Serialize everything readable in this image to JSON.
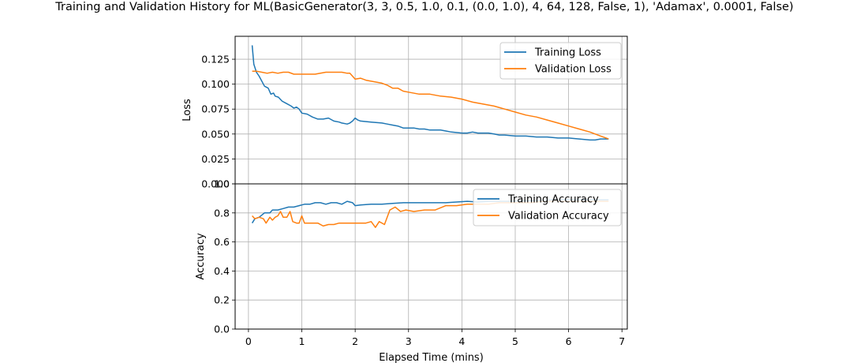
{
  "figure": {
    "title": "Training and Validation History for ML(BasicGenerator(3, 3, 0.5, 1.0, 0.1, (0.0, 1.0), 4, 64, 128, False, 1), 'Adamax', 0.0001, False)"
  },
  "colors": {
    "blue": "#1f77b4",
    "orange": "#ff7f0e",
    "grid": "#b0b0b0"
  },
  "chart_data": [
    {
      "type": "line",
      "ylabel": "Loss",
      "xlabel": "",
      "xlim": [
        -0.25,
        7.1
      ],
      "ylim": [
        0.0,
        0.148
      ],
      "yticks": [
        {
          "v": 0.0,
          "label": "0.000"
        },
        {
          "v": 0.025,
          "label": "0.025"
        },
        {
          "v": 0.05,
          "label": "0.050"
        },
        {
          "v": 0.075,
          "label": "0.075"
        },
        {
          "v": 0.1,
          "label": "0.100"
        },
        {
          "v": 0.125,
          "label": "0.125"
        }
      ],
      "xticks": [
        0,
        1,
        2,
        3,
        4,
        5,
        6,
        7
      ],
      "grid": true,
      "legend_position": "top-right",
      "series": [
        {
          "name": "Training Loss",
          "color": "#1f77b4",
          "points": [
            [
              0.07,
              0.139
            ],
            [
              0.1,
              0.12
            ],
            [
              0.15,
              0.112
            ],
            [
              0.2,
              0.108
            ],
            [
              0.3,
              0.098
            ],
            [
              0.37,
              0.096
            ],
            [
              0.42,
              0.09
            ],
            [
              0.47,
              0.091
            ],
            [
              0.5,
              0.088
            ],
            [
              0.56,
              0.087
            ],
            [
              0.63,
              0.083
            ],
            [
              0.7,
              0.081
            ],
            [
              0.8,
              0.078
            ],
            [
              0.85,
              0.076
            ],
            [
              0.9,
              0.077
            ],
            [
              0.95,
              0.075
            ],
            [
              1.0,
              0.071
            ],
            [
              1.1,
              0.07
            ],
            [
              1.2,
              0.067
            ],
            [
              1.3,
              0.065
            ],
            [
              1.4,
              0.065
            ],
            [
              1.5,
              0.066
            ],
            [
              1.6,
              0.063
            ],
            [
              1.7,
              0.062
            ],
            [
              1.75,
              0.061
            ],
            [
              1.85,
              0.06
            ],
            [
              1.9,
              0.061
            ],
            [
              1.95,
              0.063
            ],
            [
              2.0,
              0.066
            ],
            [
              2.05,
              0.064
            ],
            [
              2.1,
              0.063
            ],
            [
              2.3,
              0.062
            ],
            [
              2.5,
              0.061
            ],
            [
              2.6,
              0.06
            ],
            [
              2.7,
              0.059
            ],
            [
              2.8,
              0.058
            ],
            [
              2.9,
              0.056
            ],
            [
              3.1,
              0.056
            ],
            [
              3.2,
              0.055
            ],
            [
              3.3,
              0.055
            ],
            [
              3.4,
              0.054
            ],
            [
              3.5,
              0.054
            ],
            [
              3.6,
              0.054
            ],
            [
              3.7,
              0.053
            ],
            [
              3.8,
              0.052
            ],
            [
              4.0,
              0.051
            ],
            [
              4.1,
              0.051
            ],
            [
              4.2,
              0.052
            ],
            [
              4.3,
              0.051
            ],
            [
              4.5,
              0.051
            ],
            [
              4.6,
              0.05
            ],
            [
              4.7,
              0.049
            ],
            [
              4.8,
              0.049
            ],
            [
              5.0,
              0.048
            ],
            [
              5.2,
              0.048
            ],
            [
              5.4,
              0.047
            ],
            [
              5.6,
              0.047
            ],
            [
              5.8,
              0.046
            ],
            [
              6.0,
              0.046
            ],
            [
              6.2,
              0.045
            ],
            [
              6.4,
              0.044
            ],
            [
              6.5,
              0.044
            ],
            [
              6.6,
              0.045
            ],
            [
              6.75,
              0.045
            ]
          ]
        },
        {
          "name": "Validation Loss",
          "color": "#ff7f0e",
          "points": [
            [
              0.07,
              0.113
            ],
            [
              0.15,
              0.113
            ],
            [
              0.25,
              0.112
            ],
            [
              0.35,
              0.111
            ],
            [
              0.45,
              0.112
            ],
            [
              0.55,
              0.111
            ],
            [
              0.65,
              0.112
            ],
            [
              0.75,
              0.112
            ],
            [
              0.85,
              0.11
            ],
            [
              0.95,
              0.11
            ],
            [
              1.05,
              0.11
            ],
            [
              1.15,
              0.11
            ],
            [
              1.25,
              0.11
            ],
            [
              1.35,
              0.111
            ],
            [
              1.45,
              0.112
            ],
            [
              1.55,
              0.112
            ],
            [
              1.65,
              0.112
            ],
            [
              1.75,
              0.112
            ],
            [
              1.85,
              0.111
            ],
            [
              1.9,
              0.111
            ],
            [
              2.0,
              0.105
            ],
            [
              2.1,
              0.106
            ],
            [
              2.2,
              0.104
            ],
            [
              2.3,
              0.103
            ],
            [
              2.4,
              0.102
            ],
            [
              2.5,
              0.101
            ],
            [
              2.6,
              0.099
            ],
            [
              2.7,
              0.096
            ],
            [
              2.8,
              0.096
            ],
            [
              2.9,
              0.093
            ],
            [
              3.0,
              0.092
            ],
            [
              3.2,
              0.09
            ],
            [
              3.4,
              0.09
            ],
            [
              3.6,
              0.088
            ],
            [
              3.8,
              0.087
            ],
            [
              4.0,
              0.085
            ],
            [
              4.2,
              0.082
            ],
            [
              4.4,
              0.08
            ],
            [
              4.6,
              0.078
            ],
            [
              4.8,
              0.075
            ],
            [
              5.0,
              0.072
            ],
            [
              5.2,
              0.069
            ],
            [
              5.4,
              0.067
            ],
            [
              5.6,
              0.064
            ],
            [
              5.8,
              0.061
            ],
            [
              6.0,
              0.058
            ],
            [
              6.2,
              0.055
            ],
            [
              6.4,
              0.052
            ],
            [
              6.6,
              0.048
            ],
            [
              6.75,
              0.045
            ]
          ]
        }
      ]
    },
    {
      "type": "line",
      "ylabel": "Accuracy",
      "xlabel": "Elapsed Time (mins)",
      "xlim": [
        -0.25,
        7.1
      ],
      "ylim": [
        0.0,
        1.0
      ],
      "yticks": [
        {
          "v": 0.0,
          "label": "0.0"
        },
        {
          "v": 0.2,
          "label": "0.2"
        },
        {
          "v": 0.4,
          "label": "0.4"
        },
        {
          "v": 0.6,
          "label": "0.6"
        },
        {
          "v": 0.8,
          "label": "0.8"
        },
        {
          "v": 1.0,
          "label": "1.0"
        }
      ],
      "xticks": [
        0,
        1,
        2,
        3,
        4,
        5,
        6,
        7
      ],
      "grid": true,
      "legend_position": "top-right",
      "series": [
        {
          "name": "Training Accuracy",
          "color": "#1f77b4",
          "points": [
            [
              0.07,
              0.73
            ],
            [
              0.12,
              0.76
            ],
            [
              0.2,
              0.77
            ],
            [
              0.3,
              0.8
            ],
            [
              0.4,
              0.8
            ],
            [
              0.45,
              0.82
            ],
            [
              0.55,
              0.82
            ],
            [
              0.65,
              0.83
            ],
            [
              0.75,
              0.84
            ],
            [
              0.85,
              0.84
            ],
            [
              0.95,
              0.85
            ],
            [
              1.05,
              0.86
            ],
            [
              1.15,
              0.86
            ],
            [
              1.25,
              0.87
            ],
            [
              1.35,
              0.87
            ],
            [
              1.45,
              0.86
            ],
            [
              1.55,
              0.87
            ],
            [
              1.65,
              0.87
            ],
            [
              1.75,
              0.86
            ],
            [
              1.85,
              0.88
            ],
            [
              1.95,
              0.87
            ],
            [
              2.0,
              0.85
            ],
            [
              2.1,
              0.855
            ],
            [
              2.3,
              0.86
            ],
            [
              2.5,
              0.86
            ],
            [
              2.7,
              0.865
            ],
            [
              2.9,
              0.87
            ],
            [
              3.1,
              0.87
            ],
            [
              3.3,
              0.87
            ],
            [
              3.5,
              0.87
            ],
            [
              3.7,
              0.87
            ],
            [
              3.9,
              0.875
            ],
            [
              4.1,
              0.88
            ],
            [
              4.3,
              0.875
            ],
            [
              4.5,
              0.88
            ],
            [
              4.7,
              0.88
            ],
            [
              4.9,
              0.88
            ],
            [
              5.1,
              0.885
            ],
            [
              5.3,
              0.885
            ],
            [
              5.5,
              0.885
            ],
            [
              5.7,
              0.89
            ],
            [
              5.9,
              0.89
            ],
            [
              6.1,
              0.89
            ],
            [
              6.3,
              0.89
            ],
            [
              6.5,
              0.89
            ],
            [
              6.75,
              0.89
            ]
          ]
        },
        {
          "name": "Validation Accuracy",
          "color": "#ff7f0e",
          "points": [
            [
              0.07,
              0.78
            ],
            [
              0.12,
              0.76
            ],
            [
              0.2,
              0.77
            ],
            [
              0.28,
              0.76
            ],
            [
              0.33,
              0.73
            ],
            [
              0.4,
              0.77
            ],
            [
              0.45,
              0.75
            ],
            [
              0.5,
              0.77
            ],
            [
              0.55,
              0.78
            ],
            [
              0.6,
              0.81
            ],
            [
              0.65,
              0.77
            ],
            [
              0.72,
              0.77
            ],
            [
              0.78,
              0.81
            ],
            [
              0.83,
              0.74
            ],
            [
              0.9,
              0.73
            ],
            [
              0.95,
              0.73
            ],
            [
              1.0,
              0.78
            ],
            [
              1.05,
              0.73
            ],
            [
              1.15,
              0.73
            ],
            [
              1.3,
              0.73
            ],
            [
              1.4,
              0.71
            ],
            [
              1.5,
              0.72
            ],
            [
              1.6,
              0.72
            ],
            [
              1.7,
              0.73
            ],
            [
              1.8,
              0.73
            ],
            [
              1.9,
              0.73
            ],
            [
              2.0,
              0.73
            ],
            [
              2.2,
              0.73
            ],
            [
              2.3,
              0.74
            ],
            [
              2.38,
              0.7
            ],
            [
              2.45,
              0.74
            ],
            [
              2.55,
              0.72
            ],
            [
              2.65,
              0.82
            ],
            [
              2.75,
              0.84
            ],
            [
              2.85,
              0.81
            ],
            [
              2.95,
              0.82
            ],
            [
              3.1,
              0.81
            ],
            [
              3.3,
              0.82
            ],
            [
              3.5,
              0.82
            ],
            [
              3.7,
              0.85
            ],
            [
              3.9,
              0.85
            ],
            [
              4.1,
              0.86
            ],
            [
              4.3,
              0.86
            ],
            [
              4.5,
              0.86
            ],
            [
              4.7,
              0.87
            ],
            [
              4.9,
              0.87
            ],
            [
              5.1,
              0.87
            ],
            [
              5.3,
              0.87
            ],
            [
              5.5,
              0.88
            ],
            [
              5.7,
              0.88
            ],
            [
              5.9,
              0.88
            ],
            [
              6.1,
              0.88
            ],
            [
              6.3,
              0.88
            ],
            [
              6.5,
              0.88
            ],
            [
              6.75,
              0.88
            ]
          ]
        }
      ]
    }
  ]
}
